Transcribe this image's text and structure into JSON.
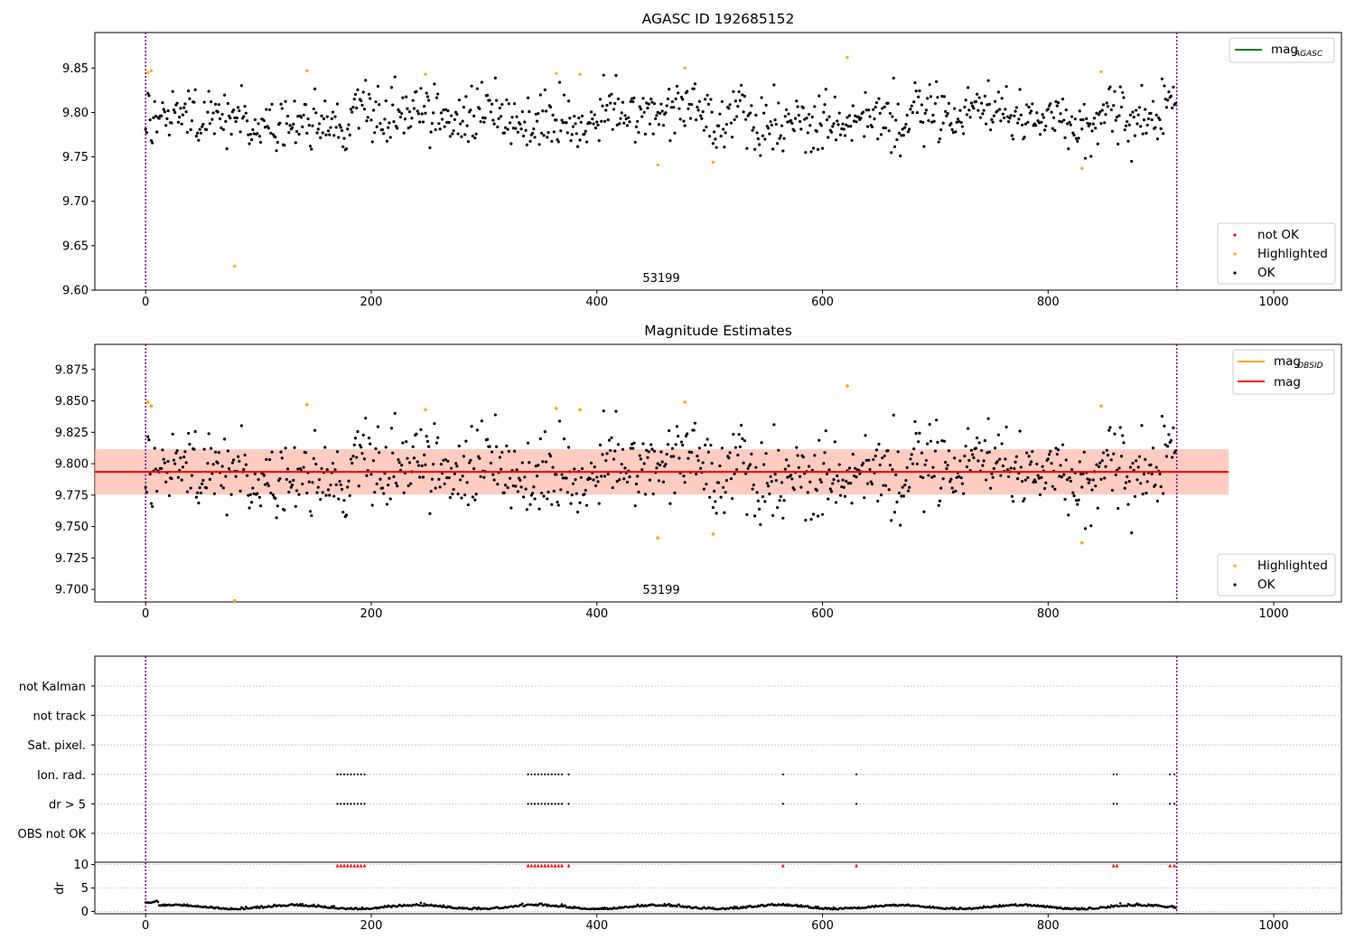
{
  "figure": {
    "title_top": "AGASC ID 192685152",
    "title_mid": "Magnitude Estimates",
    "obsid_label": "53199"
  },
  "colors": {
    "ok": "#000000",
    "highlighted": "#ffa500",
    "not_ok": "#ff0000",
    "mag_agasc_line": "#008000",
    "mag_obsid_line": "#ffa500",
    "mag_line": "#ff0000",
    "band_fill": "#ffa07a",
    "band_outer": "#ffc0cb",
    "obs_bounds": "#800080",
    "grid": "#b0b0b0"
  },
  "chart_data": [
    {
      "type": "scatter",
      "title": "AGASC ID 192685152",
      "xlabel": "",
      "ylabel": "",
      "xlim": [
        -45,
        1060
      ],
      "ylim": [
        9.6,
        9.89
      ],
      "x_ticks": [
        0,
        200,
        400,
        600,
        800,
        1000
      ],
      "y_ticks": [
        9.6,
        9.65,
        9.7,
        9.75,
        9.8,
        9.85
      ],
      "y_tick_labels": [
        "9.60",
        "9.65",
        "9.70",
        "9.75",
        "9.80",
        "9.85"
      ],
      "obs_boundaries_x": [
        0,
        914
      ],
      "obs_label": {
        "x": 457,
        "text": "53199"
      },
      "ok_points": {
        "count": 914,
        "x_range": [
          0,
          914
        ],
        "y_center": 9.794,
        "y_spread": 0.016,
        "y_extremes": [
          9.745,
          9.842
        ]
      },
      "highlighted_points": [
        {
          "x": 2,
          "y": 9.845
        },
        {
          "x": 5,
          "y": 9.847
        },
        {
          "x": 79,
          "y": 9.627
        },
        {
          "x": 143,
          "y": 9.847
        },
        {
          "x": 248,
          "y": 9.843
        },
        {
          "x": 364,
          "y": 9.844
        },
        {
          "x": 385,
          "y": 9.843
        },
        {
          "x": 454,
          "y": 9.741
        },
        {
          "x": 478,
          "y": 9.85
        },
        {
          "x": 503,
          "y": 9.744
        },
        {
          "x": 622,
          "y": 9.862
        },
        {
          "x": 830,
          "y": 9.737
        },
        {
          "x": 847,
          "y": 9.846
        }
      ],
      "not_ok_points": [],
      "legend_lines": [
        {
          "label": "mag",
          "sub": "AGASC",
          "color": "#008000"
        }
      ],
      "legend_points": [
        "not OK",
        "Highlighted",
        "OK"
      ]
    },
    {
      "type": "scatter",
      "title": "Magnitude Estimates",
      "xlabel": "",
      "ylabel": "",
      "xlim": [
        -45,
        1060
      ],
      "ylim": [
        9.69,
        9.895
      ],
      "x_ticks": [
        0,
        200,
        400,
        600,
        800,
        1000
      ],
      "y_ticks": [
        9.7,
        9.725,
        9.75,
        9.775,
        9.8,
        9.825,
        9.85,
        9.875
      ],
      "y_tick_labels": [
        "9.700",
        "9.725",
        "9.750",
        "9.775",
        "9.800",
        "9.825",
        "9.850",
        "9.875"
      ],
      "obs_boundaries_x": [
        0,
        914
      ],
      "obs_label": {
        "x": 457,
        "text": "53199"
      },
      "mag": 9.7935,
      "mag_band": [
        9.7755,
        9.8115
      ],
      "mag_x_range": [
        -45,
        960
      ],
      "highlighted_points": [
        {
          "x": 2,
          "y": 9.849
        },
        {
          "x": 5,
          "y": 9.846
        },
        {
          "x": 79,
          "y": 9.691
        },
        {
          "x": 143,
          "y": 9.847
        },
        {
          "x": 248,
          "y": 9.843
        },
        {
          "x": 364,
          "y": 9.844
        },
        {
          "x": 385,
          "y": 9.843
        },
        {
          "x": 454,
          "y": 9.741
        },
        {
          "x": 478,
          "y": 9.849
        },
        {
          "x": 503,
          "y": 9.744
        },
        {
          "x": 622,
          "y": 9.862
        },
        {
          "x": 830,
          "y": 9.737
        },
        {
          "x": 847,
          "y": 9.846
        }
      ],
      "legend_lines": [
        {
          "label": "mag",
          "sub": "OBSID",
          "color": "#ffa500"
        },
        {
          "label": "mag",
          "sub": "",
          "color": "#ff0000"
        }
      ],
      "legend_points": [
        "Highlighted",
        "OK"
      ]
    },
    {
      "type": "scatter",
      "title": "",
      "xlabel": "",
      "ylabel": "",
      "xlim": [
        -45,
        1060
      ],
      "x_ticks": [
        0,
        200,
        400,
        600,
        800,
        1000
      ],
      "flag_rows": [
        "not Kalman",
        "not track",
        "Sat. pixel.",
        "Ion. rad.",
        "dr > 5",
        "OBS not OK"
      ],
      "flag_points": {
        "Ion. rad.": [
          170,
          173,
          176,
          179,
          182,
          185,
          188,
          191,
          194,
          339,
          342,
          345,
          348,
          351,
          354,
          357,
          360,
          363,
          366,
          369,
          375,
          565,
          630,
          858,
          861,
          908,
          912
        ],
        "dr > 5": [
          170,
          173,
          176,
          179,
          182,
          185,
          188,
          191,
          194,
          339,
          342,
          345,
          348,
          351,
          354,
          357,
          360,
          363,
          366,
          369,
          375,
          565,
          630,
          858,
          861,
          908,
          912
        ]
      },
      "obs_boundaries_x": [
        0,
        914
      ]
    },
    {
      "type": "scatter",
      "title": "",
      "xlabel": "",
      "ylabel": "dr",
      "xlim": [
        -45,
        1060
      ],
      "ylim": [
        -0.5,
        10.5
      ],
      "y_ticks": [
        0,
        5,
        10
      ],
      "y_tick_labels": [
        "0",
        "5",
        "10"
      ],
      "x_ticks": [
        0,
        200,
        400,
        600,
        800,
        1000
      ],
      "x_tick_labels": [
        "0",
        "200",
        "400",
        "600",
        "800",
        "1000"
      ],
      "dr_clipped_points": [
        170,
        173,
        176,
        179,
        182,
        185,
        188,
        191,
        194,
        339,
        342,
        345,
        348,
        351,
        354,
        357,
        360,
        363,
        366,
        369,
        375,
        565,
        630,
        858,
        861,
        908,
        912
      ],
      "dr_clip_value": 9.8,
      "dr_typical": 0.8,
      "obs_boundaries_x": [
        0,
        914
      ]
    }
  ]
}
